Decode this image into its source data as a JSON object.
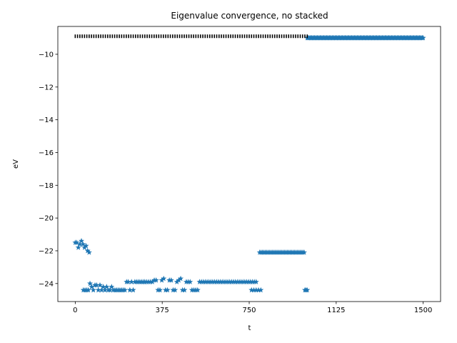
{
  "chart_data": {
    "type": "scatter",
    "title": "Eigenvalue convergence, no stacked",
    "xlabel": "t",
    "ylabel": "eV",
    "xlim": [
      -75,
      1575
    ],
    "ylim": [
      -25.1,
      -8.3
    ],
    "xticks": [
      0,
      375,
      750,
      1125,
      1500
    ],
    "yticks": [
      -24,
      -22,
      -20,
      -18,
      -16,
      -14,
      -12,
      -10
    ],
    "grid": false,
    "legend": "none",
    "colors": {
      "series": "#1f77b4",
      "reference": "#000000"
    },
    "series": [
      {
        "marker": "star",
        "segments": [
          {
            "x_start": 0,
            "x_end": 60,
            "step": 6,
            "values": [
              -21.5,
              -21.5,
              -21.8,
              -21.6,
              -21.4,
              -21.6,
              -21.8,
              -21.7,
              -22.0,
              -22.1
            ]
          },
          {
            "x_start": 35,
            "x_end": 300,
            "step": 7,
            "values": [
              -24.4,
              -24.4,
              -24.4,
              -24.4,
              -24.0,
              -24.2,
              -24.4,
              -24.1,
              -24.1,
              -24.4,
              -24.1,
              -24.4,
              -24.2,
              -24.4,
              -24.2,
              -24.4,
              -24.4,
              -24.2,
              -24.4,
              -24.4,
              -24.4,
              -24.4,
              -24.4,
              -24.4,
              -24.4,
              -24.4,
              -23.9,
              -23.9,
              -24.4,
              -23.9,
              -24.4,
              -23.9,
              -23.9,
              -23.9,
              -23.9,
              -23.9,
              -23.9,
              -23.9
            ]
          },
          {
            "x_start": 300,
            "x_end": 780,
            "step": 8,
            "values": [
              -23.9,
              -23.9,
              -23.9,
              -23.9,
              -23.9,
              -23.8,
              -23.8,
              -24.4,
              -24.4,
              -23.8,
              -23.7,
              -24.4,
              -24.4,
              -23.8,
              -23.8,
              -24.4,
              -24.4,
              -23.9,
              -23.8,
              -23.7,
              -24.4,
              -24.4,
              -23.9,
              -23.9,
              -23.9,
              -24.4,
              -24.4,
              -24.4,
              -24.4,
              -23.9,
              -23.9,
              -23.9,
              -23.9,
              -23.9,
              -23.9,
              -23.9,
              -23.9,
              -23.9,
              -23.9,
              -23.9,
              -23.9,
              -23.9,
              -23.9,
              -23.9,
              -23.9,
              -23.9,
              -23.9,
              -23.9,
              -23.9,
              -23.9,
              -23.9,
              -23.9,
              -23.9,
              -23.9,
              -23.9,
              -23.9,
              -23.9,
              -23.9,
              -23.9,
              -23.9
            ]
          },
          {
            "x_start": 760,
            "x_end": 800,
            "step": 8,
            "values": [
              -24.4,
              -24.4,
              -24.4,
              -24.4,
              -24.4
            ]
          },
          {
            "x_start": 795,
            "x_end": 990,
            "step": 6,
            "value": -22.1
          },
          {
            "x_start": 990,
            "x_end": 1000,
            "step": 5,
            "value": -24.4
          },
          {
            "x_start": 1000,
            "x_end": 1500,
            "step": 4,
            "value": -9.0
          }
        ]
      },
      {
        "marker": "short-vertical-tick",
        "segments": [
          {
            "x_start": 0,
            "x_end": 1000,
            "step": 10,
            "value": -8.9
          }
        ]
      }
    ]
  }
}
